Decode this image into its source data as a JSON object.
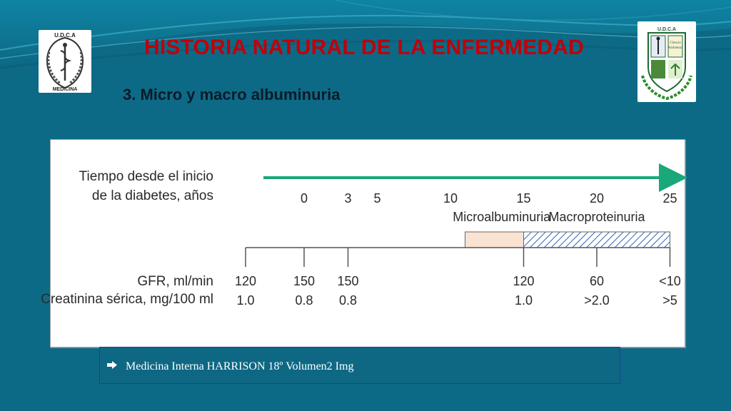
{
  "slide": {
    "title": "HISTORIA NATURAL DE LA ENFERMEDAD",
    "subtitle": "3. Micro y macro albuminuria",
    "colors": {
      "background": "#0d6a86",
      "title": "#c0000a",
      "timeline_arrow": "#1aa77a",
      "microalbuminuria_fill": "#fbe3d3",
      "macroproteinuria_hatch": "#2c63b8"
    }
  },
  "logos": {
    "left": {
      "icon": "udca-medicina-caduceus-emblem",
      "top_text": "U.D.C.A",
      "bottom_text": "MEDICINA"
    },
    "right": {
      "icon": "udca-ciencias-ambientales-crest",
      "top_text": "U.D.C.A",
      "panel_text": [
        "Ciencia",
        "Ambiental"
      ]
    }
  },
  "figure": {
    "row_labels": {
      "time_line1": "Tiempo desde el inicio",
      "time_line2": "de la diabetes, años",
      "gfr": "GFR, ml/min",
      "creatinine": "Creatinina sérica, mg/100 ml"
    },
    "years": [
      "0",
      "3",
      "5",
      "10",
      "15",
      "20",
      "25"
    ],
    "stage_labels": {
      "micro": "Microalbuminuria",
      "macro": "Macroproteinuria"
    },
    "stages": [
      {
        "name": "micro",
        "start_year": 11,
        "end_year": 15
      },
      {
        "name": "macro",
        "start_year": 15,
        "end_year": 25
      }
    ],
    "measurements": [
      {
        "year": -4,
        "gfr": "120",
        "creatinine": "1.0"
      },
      {
        "year": 0,
        "gfr": "150",
        "creatinine": "0.8"
      },
      {
        "year": 3,
        "gfr": "150",
        "creatinine": "0.8"
      },
      {
        "year": 15,
        "gfr": "120",
        "creatinine": "1.0"
      },
      {
        "year": 20,
        "gfr": "60",
        "creatinine": ">2.0"
      },
      {
        "year": 25,
        "gfr": "<10",
        "creatinine": ">5"
      }
    ]
  },
  "caption": {
    "bullet_icon": "arrow-bullet-icon",
    "text": "Medicina Interna HARRISON 18º Volumen2 Img"
  }
}
